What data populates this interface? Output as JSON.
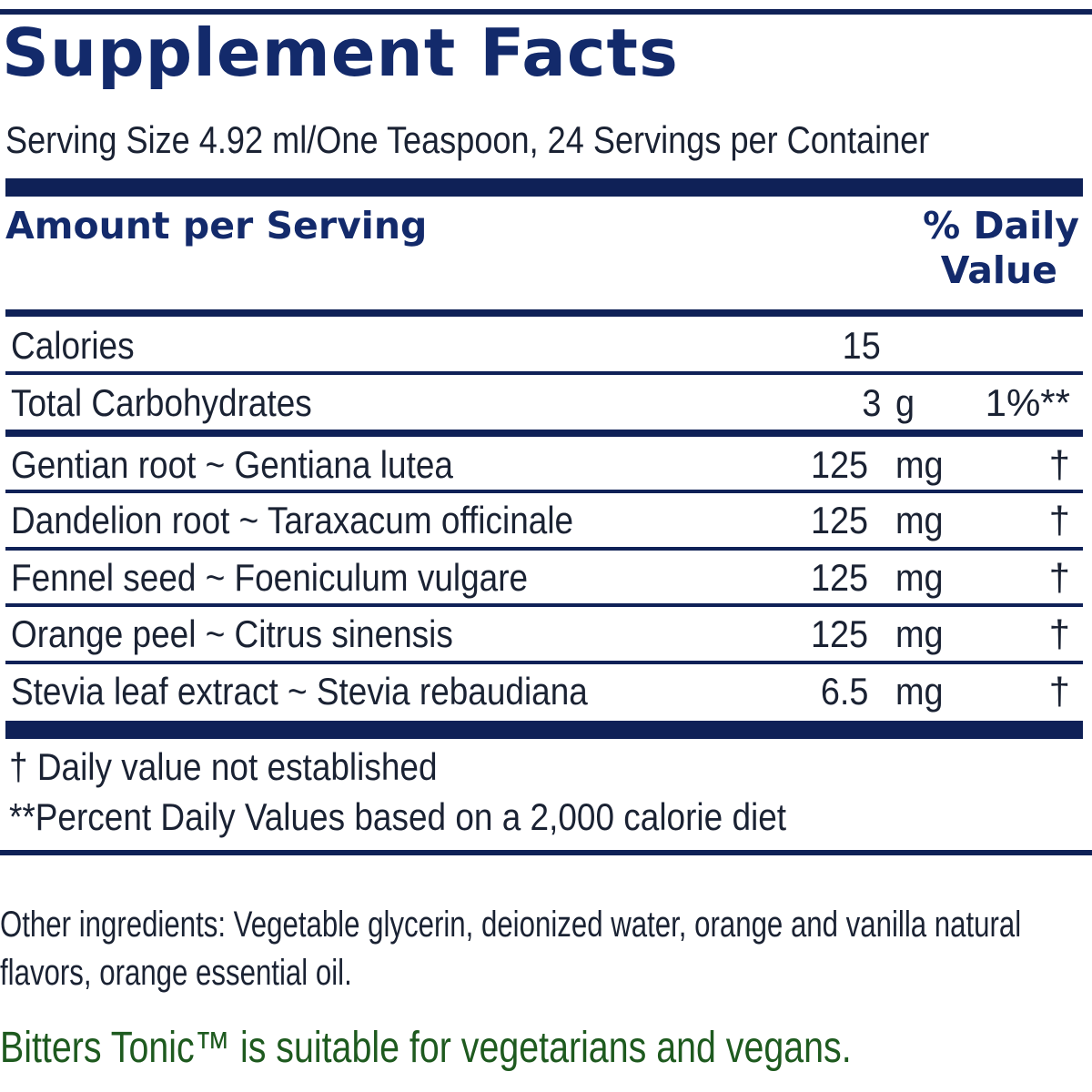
{
  "label": {
    "title": "Supplement Facts",
    "serving": "Serving Size 4.92 ml/One Teaspoon, 24 Servings per Container",
    "header_left": "Amount per Serving",
    "header_right_line1": "% Daily",
    "header_right_line2": "Value",
    "rows": [
      {
        "name": "Calories",
        "amount": "15",
        "unit": "",
        "dv": ""
      },
      {
        "name": "Total Carbohydrates",
        "amount": "3",
        "unit": "g",
        "dv": "1%**"
      },
      {
        "name": "Gentian root ~ Gentiana lutea",
        "amount": "125",
        "unit": "mg",
        "dv": "†"
      },
      {
        "name": "Dandelion root ~ Taraxacum officinale",
        "amount": "125",
        "unit": "mg",
        "dv": "†"
      },
      {
        "name": "Fennel seed ~ Foeniculum vulgare",
        "amount": "125",
        "unit": "mg",
        "dv": "†"
      },
      {
        "name": "Orange peel ~ Citrus sinensis",
        "amount": "125",
        "unit": "mg",
        "dv": "†"
      },
      {
        "name": "Stevia leaf extract ~ Stevia rebaudiana",
        "amount": "6.5",
        "unit": "mg",
        "dv": "†"
      }
    ],
    "footnote_1": "†  Daily value not established",
    "footnote_2": "**Percent Daily Values based on a 2,000 calorie diet"
  },
  "other_ingredients_line1": "Other ingredients: Vegetable glycerin, deionized water, orange and vanilla natural",
  "other_ingredients_line2": "flavors, orange essential oil.",
  "vegan_statement": "Bitters Tonic™ is suitable for vegetarians and vegans.",
  "colors": {
    "navy": "#0f2157",
    "title_blue": "#132a6b",
    "green": "#1e5a1f"
  }
}
